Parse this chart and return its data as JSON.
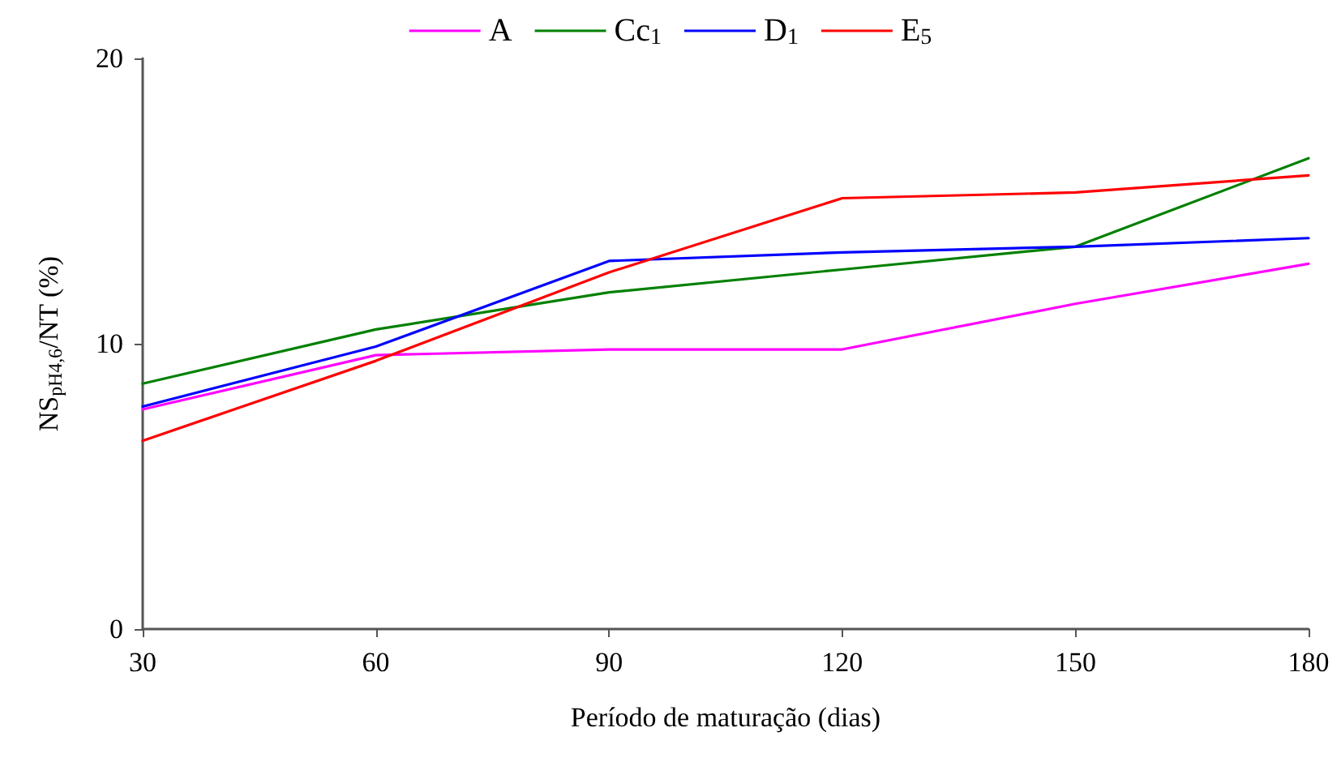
{
  "chart_data": {
    "type": "line",
    "xlabel": "Período de maturação (dias)",
    "ylabel": "NS$_{pH4,6}$/NT (%)",
    "x": [
      30,
      60,
      90,
      120,
      150,
      180
    ],
    "series": [
      {
        "name": "A",
        "color": "#ff00ff",
        "values": [
          7.7,
          9.6,
          9.8,
          9.8,
          11.4,
          12.8
        ]
      },
      {
        "name": "Cc$_{1}$",
        "color": "#008000",
        "values": [
          8.6,
          10.5,
          11.8,
          12.6,
          13.4,
          16.5
        ]
      },
      {
        "name": "D$_{1}$",
        "color": "#0000ff",
        "values": [
          7.8,
          9.9,
          12.9,
          13.2,
          13.4,
          13.7
        ]
      },
      {
        "name": "E$_{5}$",
        "color": "#ff0000",
        "values": [
          6.6,
          9.4,
          12.5,
          15.1,
          15.3,
          15.9
        ]
      }
    ],
    "xlim": [
      30,
      180
    ],
    "xticks": [
      30,
      60,
      90,
      120,
      150,
      180
    ],
    "ylim": [
      0,
      20
    ],
    "yticks": [
      0,
      10,
      20
    ],
    "grid": false,
    "legend": "top",
    "marker": "none",
    "line_style": "solid"
  }
}
